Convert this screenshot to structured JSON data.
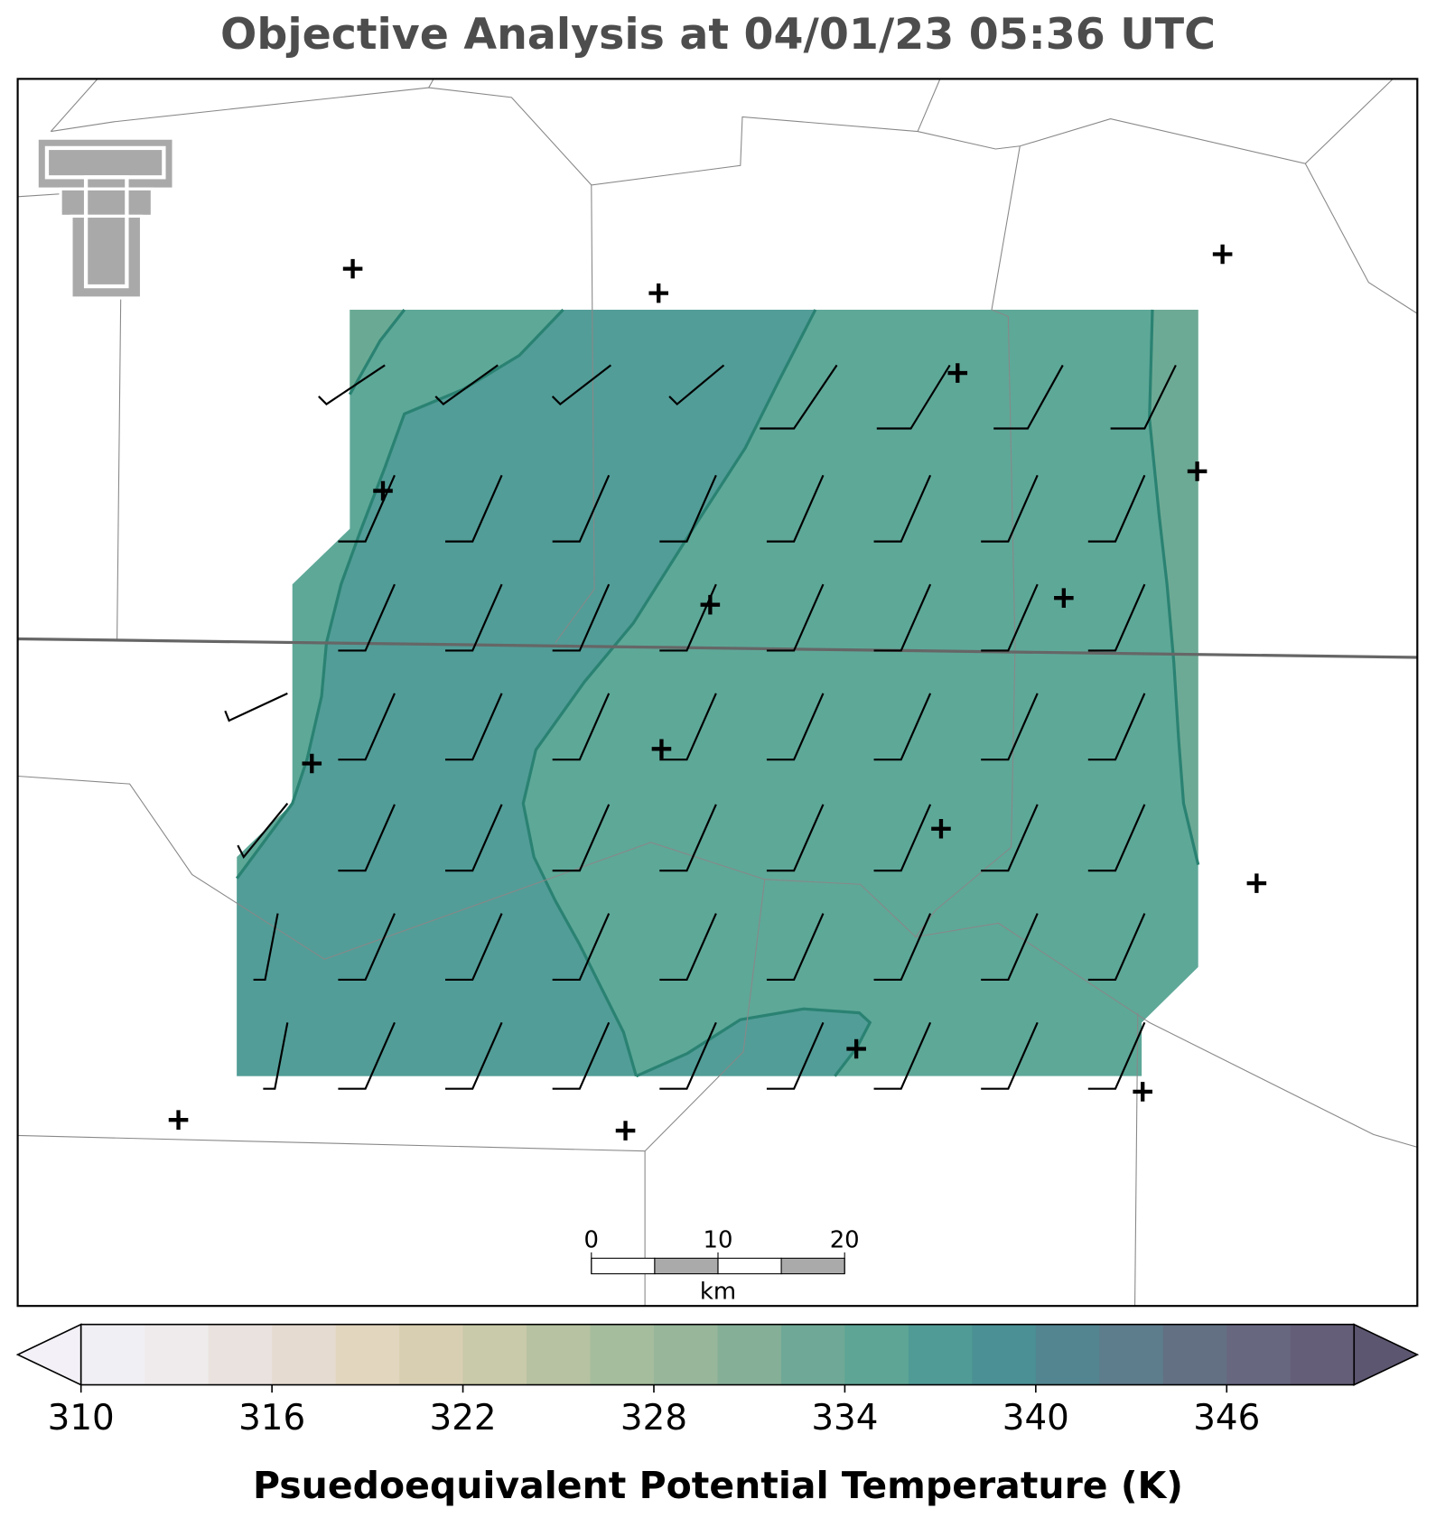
{
  "title": "Objective Analysis at 04/01/23 05:36 UTC",
  "colorbar": {
    "label": "Psuedoequivalent Potential Temperature (K)",
    "lim": [
      310,
      350
    ],
    "ticks": [
      310,
      316,
      322,
      328,
      334,
      340,
      346
    ],
    "colors": [
      "#f0eff4",
      "#efebec",
      "#e9e2de",
      "#e5dbd0",
      "#e3d6bf",
      "#d8cfb2",
      "#c8caa9",
      "#b7c2a2",
      "#a6bd9d",
      "#97b69a",
      "#86af98",
      "#6fa896",
      "#5ea596",
      "#519b96",
      "#4a9094",
      "#528590",
      "#5d7c8c",
      "#637084",
      "#676880",
      "#655e78"
    ],
    "extend_colors": [
      "#f3f1f7",
      "#5d5670"
    ]
  },
  "scalebar": {
    "ticks": [
      0,
      10,
      20
    ],
    "unit": "km"
  }
}
